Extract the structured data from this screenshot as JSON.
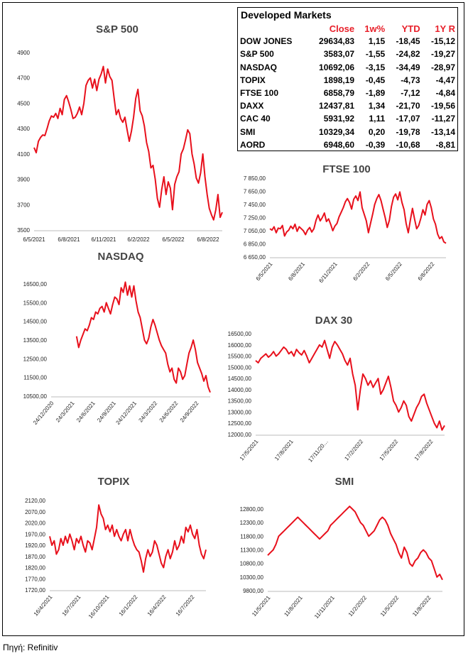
{
  "table": {
    "title": "Developed Markets",
    "headers": [
      "Close",
      "1w%",
      "YTD",
      "1Y R"
    ],
    "rows": [
      {
        "name": "DOW JONES",
        "close": "29634,83",
        "w1": "1,15",
        "ytd": "-18,45",
        "y1": "-15,12"
      },
      {
        "name": "S&P 500",
        "close": "3583,07",
        "w1": "-1,55",
        "ytd": "-24,82",
        "y1": "-19,27"
      },
      {
        "name": "NASDAQ",
        "close": "10692,06",
        "w1": "-3,15",
        "ytd": "-34,49",
        "y1": "-28,97"
      },
      {
        "name": "TOPIX",
        "close": "1898,19",
        "w1": "-0,45",
        "ytd": "-4,73",
        "y1": "-4,47"
      },
      {
        "name": "FTSE 100",
        "close": "6858,79",
        "w1": "-1,89",
        "ytd": "-7,12",
        "y1": "-4,84"
      },
      {
        "name": "DAXX",
        "close": "12437,81",
        "w1": "1,34",
        "ytd": "-21,70",
        "y1": "-19,56"
      },
      {
        "name": "CAC 40",
        "close": "5931,92",
        "w1": "1,11",
        "ytd": "-17,07",
        "y1": "-11,27"
      },
      {
        "name": "SMI",
        "close": "10329,34",
        "w1": "0,20",
        "ytd": "-19,78",
        "y1": "-13,14"
      },
      {
        "name": "AORD",
        "close": "6948,60",
        "w1": "-0,39",
        "ytd": "-10,68",
        "y1": "-8,81"
      }
    ]
  },
  "source": "Πηγή: Refinitiv",
  "colors": {
    "line": "#e8101c",
    "accent": "#e8202a"
  },
  "chart_data": [
    {
      "id": "sp500",
      "type": "line",
      "title": "S&P 500",
      "ylim": [
        3500,
        4900
      ],
      "yticks": [
        "3500",
        "3700",
        "3900",
        "4100",
        "4300",
        "4500",
        "4700",
        "4900"
      ],
      "xticks": [
        "6/5/2021",
        "6/8/2021",
        "6/11/2021",
        "6/2/2022",
        "6/5/2022",
        "6/8/2022"
      ],
      "xlabel_rotate": false,
      "values": [
        4150,
        4110,
        4200,
        4230,
        4250,
        4245,
        4300,
        4360,
        4400,
        4390,
        4420,
        4380,
        4460,
        4410,
        4530,
        4560,
        4510,
        4450,
        4380,
        4390,
        4420,
        4470,
        4410,
        4500,
        4640,
        4680,
        4700,
        4620,
        4690,
        4600,
        4690,
        4730,
        4790,
        4660,
        4770,
        4710,
        4680,
        4540,
        4410,
        4450,
        4380,
        4350,
        4390,
        4290,
        4200,
        4280,
        4390,
        4540,
        4610,
        4440,
        4400,
        4320,
        4190,
        4120,
        3990,
        4010,
        3900,
        3750,
        3680,
        3820,
        3920,
        3780,
        3880,
        3830,
        3660,
        3860,
        3920,
        3960,
        4100,
        4140,
        4210,
        4290,
        4260,
        4100,
        4020,
        3910,
        3870,
        3950,
        4100,
        3920,
        3780,
        3670,
        3620,
        3580,
        3660,
        3780,
        3600,
        3640
      ]
    },
    {
      "id": "ftse",
      "type": "line",
      "title": "FTSE 100",
      "ylim": [
        6650,
        7850
      ],
      "yticks": [
        "6 650,00",
        "6 850,00",
        "7 050,00",
        "7 250,00",
        "7 450,00",
        "7 650,00",
        "7 850,00"
      ],
      "xticks": [
        "6/5/2021",
        "6/8/2021",
        "6/11/2021",
        "6/2/2022",
        "6/5/2022",
        "6/8/2022"
      ],
      "xlabel_rotate": true,
      "values": [
        7080,
        7060,
        7110,
        7020,
        7090,
        7080,
        7130,
        6970,
        7030,
        7060,
        7120,
        7080,
        7150,
        7040,
        7110,
        7080,
        7050,
        6990,
        7060,
        7100,
        7030,
        7080,
        7210,
        7290,
        7200,
        7250,
        7320,
        7190,
        7230,
        7150,
        7050,
        7120,
        7160,
        7260,
        7330,
        7400,
        7490,
        7540,
        7480,
        7380,
        7530,
        7580,
        7510,
        7640,
        7400,
        7300,
        7200,
        7020,
        7160,
        7300,
        7450,
        7540,
        7600,
        7510,
        7380,
        7250,
        7100,
        7210,
        7420,
        7560,
        7610,
        7520,
        7640,
        7480,
        7370,
        7160,
        7020,
        7210,
        7390,
        7230,
        7080,
        7130,
        7240,
        7370,
        7290,
        7450,
        7510,
        7400,
        7230,
        7150,
        7000,
        6930,
        6960,
        6880,
        6860
      ]
    },
    {
      "id": "nasdaq",
      "type": "line",
      "title": "NASDAQ",
      "ylim": [
        10500,
        16500
      ],
      "yticks": [
        "10500,00",
        "11500,00",
        "12500,00",
        "13500,00",
        "14500,00",
        "15500,00",
        "16500,00"
      ],
      "xticks": [
        "24/12/2020",
        "24/3/2021",
        "24/6/2021",
        "24/9/2021",
        "24/12/2021",
        "24/3/2022",
        "24/6/2022",
        "24/9/2022"
      ],
      "xlabel_rotate": true,
      "values": [
        null,
        null,
        null,
        null,
        null,
        null,
        null,
        null,
        null,
        null,
        null,
        null,
        13700,
        13100,
        13500,
        13800,
        14100,
        14000,
        14300,
        14700,
        14600,
        15000,
        14900,
        15200,
        15300,
        15000,
        15500,
        15200,
        14900,
        15400,
        15800,
        15700,
        15400,
        16300,
        16050,
        16600,
        15900,
        16400,
        15800,
        16400,
        15600,
        15000,
        14700,
        14100,
        13500,
        13300,
        13600,
        14200,
        14600,
        14300,
        13900,
        13500,
        13200,
        13000,
        12800,
        12200,
        11800,
        12000,
        11400,
        11200,
        12000,
        11800,
        11400,
        11600,
        12200,
        12800,
        13100,
        13500,
        13000,
        12300,
        12000,
        11700,
        11300,
        11600,
        11000,
        10700
      ]
    },
    {
      "id": "dax",
      "type": "line",
      "title": "DAX 30",
      "ylim": [
        12000,
        16500
      ],
      "yticks": [
        "12000,00",
        "12500,00",
        "13000,00",
        "13500,00",
        "14000,00",
        "14500,00",
        "15000,00",
        "15500,00",
        "16000,00",
        "16500,00"
      ],
      "xticks": [
        "17/5/2021",
        "17/8/2021",
        "17/11/20…",
        "17/2/2022",
        "17/5/2022",
        "17/8/2022"
      ],
      "xlabel_rotate": true,
      "values": [
        15300,
        15200,
        15400,
        15500,
        15600,
        15450,
        15550,
        15700,
        15500,
        15600,
        15750,
        15900,
        15800,
        15600,
        15700,
        15500,
        15800,
        15650,
        15550,
        15750,
        15500,
        15200,
        15400,
        15600,
        15800,
        16000,
        15900,
        16200,
        15800,
        15400,
        15900,
        16150,
        16000,
        15800,
        15600,
        15300,
        15100,
        15400,
        14700,
        14200,
        13100,
        14000,
        14700,
        14500,
        14200,
        14400,
        14100,
        14300,
        14500,
        13800,
        14000,
        14300,
        14600,
        14100,
        13500,
        13300,
        13000,
        13200,
        13500,
        13300,
        12800,
        12600,
        12900,
        13200,
        13400,
        13700,
        13800,
        13400,
        13100,
        12800,
        12500,
        12300,
        12600,
        12200,
        12400
      ]
    },
    {
      "id": "topix",
      "type": "line",
      "title": "TOPIX",
      "ylim": [
        1720,
        2120
      ],
      "yticks": [
        "1720,00",
        "1770,00",
        "1820,00",
        "1870,00",
        "1920,00",
        "1970,00",
        "2020,00",
        "2070,00",
        "2120,00"
      ],
      "xticks": [
        "16/4/2021",
        "16/7/2021",
        "16/10/2021",
        "16/1/2022",
        "16/4/2022",
        "16/7/2022"
      ],
      "xlabel_rotate": true,
      "values": [
        1960,
        1920,
        1940,
        1880,
        1900,
        1950,
        1920,
        1960,
        1930,
        1970,
        1940,
        1900,
        1950,
        1930,
        1960,
        1920,
        1890,
        1940,
        1930,
        1900,
        1950,
        2000,
        2100,
        2060,
        2040,
        1990,
        2010,
        1980,
        2010,
        1960,
        1990,
        1960,
        1940,
        1970,
        1990,
        1940,
        1990,
        1950,
        1920,
        1900,
        1890,
        1850,
        1800,
        1860,
        1900,
        1870,
        1890,
        1940,
        1920,
        1880,
        1840,
        1820,
        1870,
        1900,
        1860,
        1890,
        1940,
        1900,
        1920,
        1960,
        1930,
        2000,
        1980,
        2010,
        1970,
        1950,
        1990,
        1920,
        1880,
        1860,
        1900
      ]
    },
    {
      "id": "smi",
      "type": "line",
      "title": "SMI",
      "ylim": [
        9800,
        12800
      ],
      "yticks": [
        "9800,00",
        "10300,00",
        "10800,00",
        "11300,00",
        "11800,00",
        "12300,00",
        "12800,00"
      ],
      "xticks": [
        "11/5/2021",
        "11/8/2021",
        "11/11/2021",
        "11/2/2022",
        "11/5/2022",
        "11/8/2022"
      ],
      "xlabel_rotate": true,
      "values": [
        11100,
        11200,
        11300,
        11500,
        11800,
        11900,
        12000,
        12100,
        12200,
        12300,
        12400,
        12500,
        12400,
        12300,
        12200,
        12100,
        12000,
        11900,
        11800,
        11700,
        11800,
        11900,
        12000,
        12200,
        12300,
        12400,
        12500,
        12600,
        12700,
        12800,
        12900,
        12800,
        12700,
        12500,
        12300,
        12200,
        12000,
        11800,
        11900,
        12000,
        12200,
        12400,
        12500,
        12400,
        12200,
        11900,
        11700,
        11500,
        11200,
        11000,
        11400,
        11200,
        10800,
        10700,
        10900,
        11000,
        11200,
        11300,
        11200,
        11000,
        10900,
        10600,
        10300,
        10400,
        10200
      ]
    }
  ]
}
